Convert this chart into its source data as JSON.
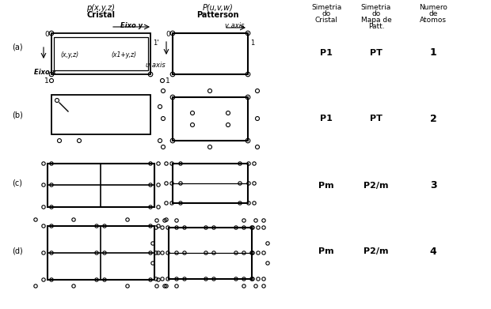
{
  "bg_color": "#ffffff",
  "header_cristal_line1": "p(x,y,z)",
  "header_cristal_line2": "Cristal",
  "header_patterson_line1": "P(u,v,w)",
  "header_patterson_line2": "Patterson",
  "col1_header": [
    "Simetria",
    "do",
    "Cristal"
  ],
  "col2_header": [
    "Simetria",
    "do",
    "Mapa de",
    "Patt."
  ],
  "col3_header": [
    "Numero",
    "de",
    "Atomos"
  ],
  "rows": [
    {
      "label": "(a)",
      "sym_c": "P1",
      "sym_p": "PT",
      "n": "1"
    },
    {
      "label": "(b)",
      "sym_c": "P1",
      "sym_p": "PT",
      "n": "2"
    },
    {
      "label": "(c)",
      "sym_c": "Pm",
      "sym_p": "P2/m",
      "n": "3"
    },
    {
      "label": "(d)",
      "sym_c": "Pm",
      "sym_p": "P2/m",
      "n": "4"
    }
  ],
  "fig_w": 6.2,
  "fig_h": 3.91,
  "dpi": 100
}
